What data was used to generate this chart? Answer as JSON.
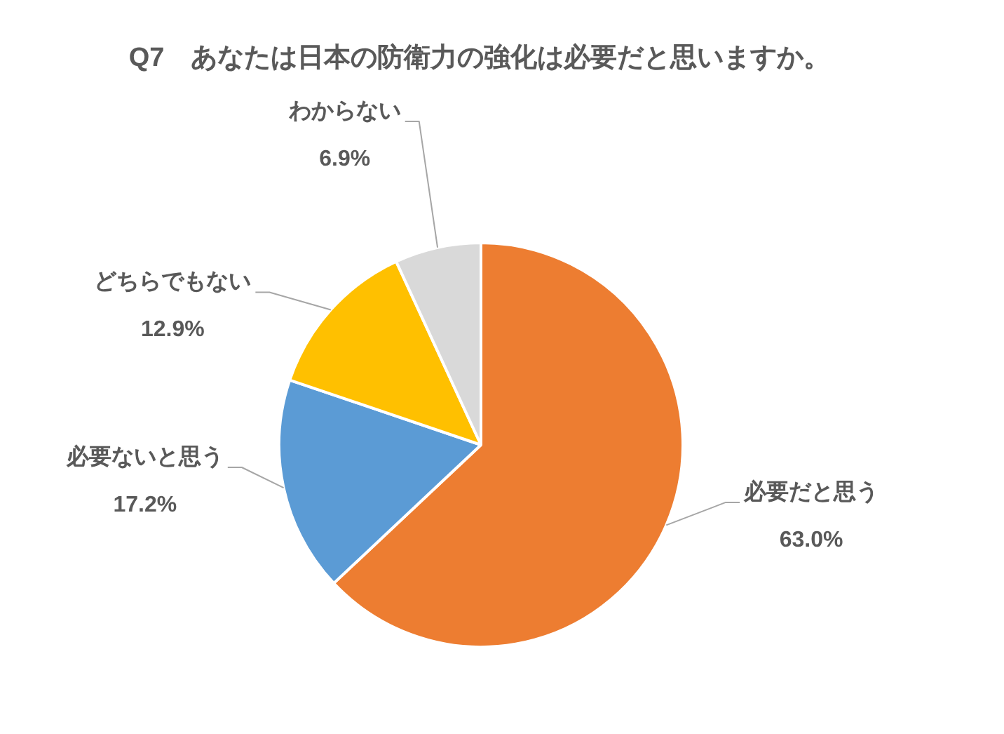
{
  "chart_data": {
    "type": "pie",
    "title": "Q7　あなたは日本の防衛力の強化は必要だと思いますか。",
    "categories": [
      "必要だと思う",
      "必要ないと思う",
      "どちらでもない",
      "わからない"
    ],
    "values": [
      63.0,
      17.2,
      12.9,
      6.9
    ],
    "colors": [
      "#ed7d31",
      "#5b9bd5",
      "#ffc000",
      "#d9d9d9"
    ],
    "value_labels": [
      "63.0%",
      "17.2%",
      "12.9%",
      "6.9%"
    ],
    "legend": false
  }
}
